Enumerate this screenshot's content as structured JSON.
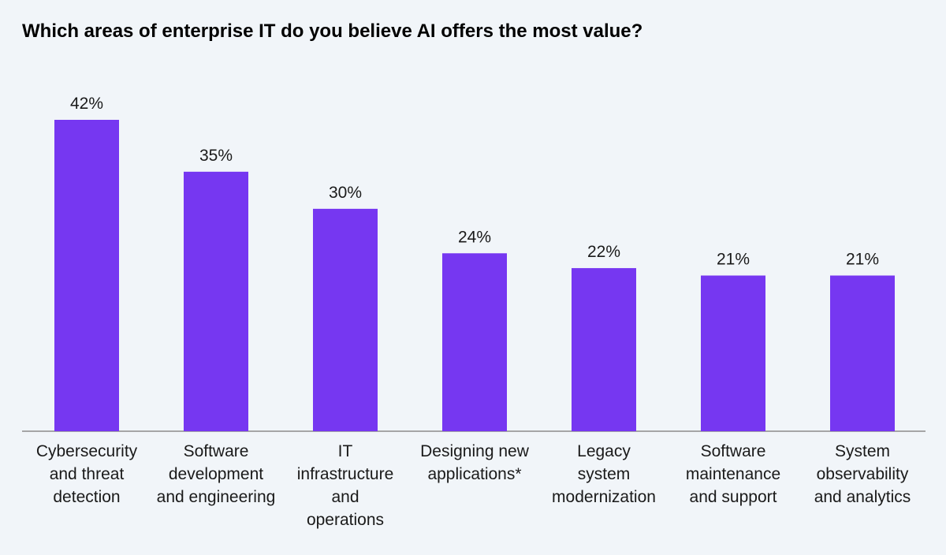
{
  "chart_data": {
    "type": "bar",
    "title": "Which areas of enterprise IT do you believe AI offers the most value?",
    "categories": [
      "Cybersecurity and threat detection",
      "Software development and engineering",
      "IT infrastructure and operations",
      "Designing new applications*",
      "Legacy system modernization",
      "Software maintenance and support",
      "System observability and analytics"
    ],
    "category_lines": [
      [
        "Cybersecurity",
        "and threat",
        "detection"
      ],
      [
        "Software",
        "development",
        "and engineering"
      ],
      [
        "IT",
        "infrastructure",
        "and",
        "operations"
      ],
      [
        "Designing new",
        "applications*"
      ],
      [
        "Legacy",
        "system",
        "modernization"
      ],
      [
        "Software",
        "maintenance",
        "and support"
      ],
      [
        "System",
        "observability",
        "and analytics"
      ]
    ],
    "values": [
      42,
      35,
      30,
      24,
      22,
      21,
      21
    ],
    "value_labels": [
      "42%",
      "35%",
      "30%",
      "24%",
      "22%",
      "21%",
      "21%"
    ],
    "ylim": [
      0,
      42
    ],
    "grid": false,
    "bar_color": "#7637f1",
    "axis_color": "#8c8c8c"
  }
}
